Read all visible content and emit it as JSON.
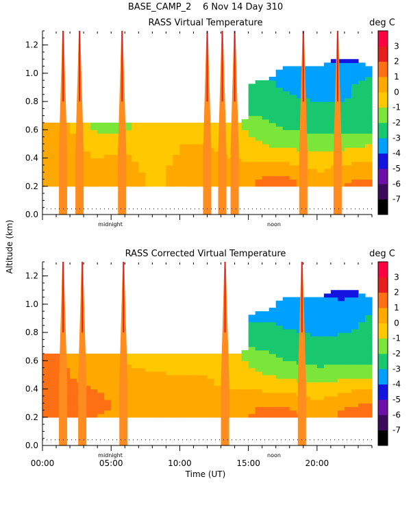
{
  "header": {
    "site": "BASE_CAMP_2",
    "date": "6 Nov 14",
    "doy": "Day 310",
    "full": "BASE_CAMP_2    6 Nov 14 Day 310"
  },
  "colors": {
    "scale": [
      "#000000",
      "#3c0a5a",
      "#6c0fa8",
      "#1414e0",
      "#00a0ff",
      "#19c86e",
      "#7be639",
      "#ffc800",
      "#ffa800",
      "#ff7014",
      "#e61e1e",
      "#ff0040"
    ],
    "tower": "#ff8c1e"
  },
  "chart_data": [
    {
      "type": "heatmap",
      "title": "RASS Virtual Temperature",
      "units_label": "deg C",
      "ylabel": "Altitude (km)",
      "xlabel": "",
      "y_ticks": [
        "0.0",
        "0.2",
        "0.4",
        "0.6",
        "0.8",
        "1.0",
        "1.2"
      ],
      "x_markers": [
        "midnight",
        "noon"
      ],
      "colorbar_ticks": [
        "3",
        "2",
        "1",
        "0",
        "-1",
        "-2",
        "-3",
        "-4",
        "-5",
        "-6",
        "-7"
      ],
      "ylim": [
        0.0,
        1.3
      ],
      "xlim": [
        0,
        24
      ],
      "grid": false,
      "field": {
        "x": [
          0,
          2,
          4,
          6,
          8,
          10,
          12,
          14,
          16,
          18,
          20,
          22,
          24
        ],
        "y": [
          0.2,
          0.3,
          0.4,
          0.5,
          0.6,
          0.7,
          0.8,
          0.9,
          1.0,
          1.1
        ],
        "values": [
          [
            0.5,
            0.6,
            0.2,
            0.4,
            -0.2,
            0.2,
            0.0,
            0.3,
            1.5,
            1.4,
            0.2,
            1.2,
            1.6
          ],
          [
            0.6,
            0.5,
            0.3,
            0.5,
            -0.3,
            0.3,
            0.2,
            0.2,
            0.8,
            0.8,
            0.0,
            0.4,
            0.7
          ],
          [
            0.4,
            0.5,
            0.0,
            0.2,
            -0.5,
            0.1,
            0.1,
            0.0,
            -0.2,
            -0.4,
            -0.6,
            -0.3,
            -0.1
          ],
          [
            0.2,
            0.3,
            -0.6,
            -0.4,
            -0.5,
            0.0,
            0.0,
            -0.2,
            -1.0,
            -1.3,
            -1.6,
            -1.4,
            -1.0
          ],
          [
            0.1,
            0.1,
            -1.2,
            -1.1,
            -0.8,
            -0.3,
            -0.1,
            -0.5,
            -1.7,
            -2.0,
            -2.2,
            -2.2,
            -2.3
          ],
          [
            null,
            null,
            null,
            null,
            null,
            null,
            null,
            null,
            -2.0,
            -2.4,
            -2.6,
            -2.8,
            -2.6
          ],
          [
            null,
            null,
            null,
            null,
            null,
            null,
            null,
            null,
            -2.2,
            -2.8,
            -3.0,
            -3.0,
            -2.8
          ],
          [
            null,
            null,
            null,
            null,
            null,
            null,
            null,
            null,
            -2.6,
            -3.2,
            -3.3,
            -3.1,
            -2.7
          ],
          [
            null,
            null,
            null,
            null,
            null,
            null,
            null,
            null,
            null,
            -3.3,
            -3.5,
            -3.5,
            -3.0
          ],
          [
            null,
            null,
            null,
            null,
            null,
            null,
            null,
            null,
            null,
            null,
            null,
            -4.2,
            null
          ]
        ]
      },
      "spikes_utc": [
        1.5,
        2.7,
        5.8,
        12.0,
        13.1,
        14.0,
        19.0,
        21.5
      ]
    },
    {
      "type": "heatmap",
      "title": "RASS Corrected Virtual Temperature",
      "units_label": "deg C",
      "ylabel": "Altitude (km)",
      "xlabel": "Time (UT)",
      "y_ticks": [
        "0.0",
        "0.2",
        "0.4",
        "0.6",
        "0.8",
        "1.0",
        "1.2"
      ],
      "x_ticks": [
        "00:00",
        "05:00",
        "10:00",
        "15:00",
        "20:00"
      ],
      "x_markers": [
        "midnight",
        "noon"
      ],
      "colorbar_ticks": [
        "3",
        "2",
        "1",
        "0",
        "-1",
        "-2",
        "-3",
        "-4",
        "-5",
        "-6",
        "-7"
      ],
      "ylim": [
        0.0,
        1.3
      ],
      "xlim": [
        0,
        24
      ],
      "grid": false,
      "field": {
        "x": [
          0,
          2,
          4,
          6,
          8,
          10,
          12,
          14,
          16,
          18,
          20,
          22,
          24
        ],
        "y": [
          0.2,
          0.3,
          0.4,
          0.5,
          0.6,
          0.7,
          0.8,
          0.9,
          1.0,
          1.1
        ],
        "values": [
          [
            1.8,
            1.3,
            1.0,
            0.8,
            0.4,
            0.2,
            0.2,
            0.4,
            1.5,
            1.5,
            0.4,
            1.4,
            1.6
          ],
          [
            2.0,
            1.4,
            1.2,
            0.8,
            0.6,
            0.3,
            0.3,
            0.2,
            0.9,
            0.8,
            0.2,
            0.8,
            1.0
          ],
          [
            2.0,
            1.2,
            1.0,
            0.5,
            0.4,
            0.1,
            0.1,
            0.0,
            -0.1,
            -0.4,
            -0.6,
            -0.2,
            0.0
          ],
          [
            1.6,
            1.0,
            0.6,
            0.2,
            0.1,
            0.0,
            0.0,
            -0.3,
            -0.9,
            -1.3,
            -1.6,
            -1.4,
            -1.2
          ],
          [
            1.4,
            0.8,
            0.4,
            0.0,
            -0.3,
            -0.3,
            -0.2,
            -0.6,
            -1.6,
            -2.0,
            -2.3,
            -2.2,
            -2.3
          ],
          [
            null,
            null,
            null,
            null,
            null,
            null,
            null,
            null,
            -2.1,
            -2.5,
            -2.7,
            -2.8,
            -2.6
          ],
          [
            null,
            null,
            null,
            null,
            null,
            null,
            null,
            null,
            -2.4,
            -2.9,
            -3.1,
            -3.0,
            -2.8
          ],
          [
            null,
            null,
            null,
            null,
            null,
            null,
            null,
            null,
            -3.1,
            -3.4,
            -3.6,
            -3.3,
            -2.9
          ],
          [
            null,
            null,
            null,
            null,
            null,
            null,
            null,
            null,
            null,
            -3.6,
            -3.8,
            -3.7,
            -3.2
          ],
          [
            null,
            null,
            null,
            null,
            null,
            null,
            null,
            null,
            null,
            null,
            null,
            -4.6,
            null
          ]
        ]
      },
      "spikes_utc": [
        1.5,
        2.9,
        5.9,
        13.3,
        18.9
      ]
    }
  ]
}
